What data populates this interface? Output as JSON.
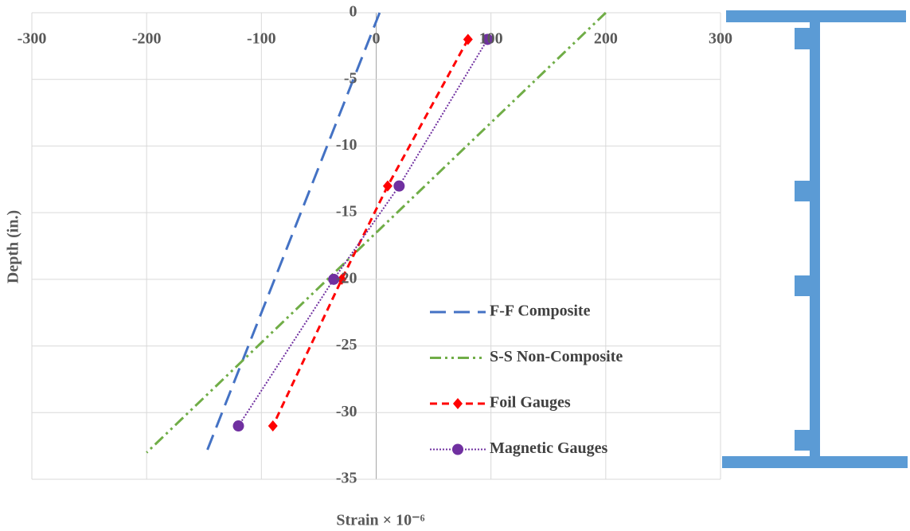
{
  "chart_data": {
    "type": "line",
    "x_label": "Strain × 10⁻⁶",
    "y_label": "Depth (in.)",
    "xlim": [
      -300,
      300
    ],
    "xticks": [
      -300,
      -200,
      -100,
      0,
      100,
      200,
      300
    ],
    "ylim": [
      -35,
      0
    ],
    "yticks": [
      0,
      -5,
      -10,
      -15,
      -20,
      -25,
      -30,
      -35
    ],
    "grid": true,
    "legend": "lower right",
    "series": [
      {
        "name": "F-F Composite",
        "color": "#4472c4",
        "dash": "dashed",
        "marker": "none",
        "x": [
          3,
          -148
        ],
        "values": [
          0,
          -33
        ]
      },
      {
        "name": "S-S Non-Composite",
        "color": "#70ad47",
        "dash": "dashdotdot",
        "marker": "none",
        "x": [
          200,
          -200
        ],
        "values": [
          0,
          -33
        ]
      },
      {
        "name": "Foil Gauges",
        "color": "#ff0000",
        "dash": "short-dash",
        "marker": "diamond",
        "x": [
          80,
          10,
          -30,
          -90
        ],
        "values": [
          -2,
          -13,
          -20,
          -31
        ]
      },
      {
        "name": "Magnetic Gauges",
        "color": "#7030a0",
        "dash": "dotted",
        "marker": "circle",
        "x": [
          97,
          20,
          -37,
          -120
        ],
        "values": [
          -2,
          -13,
          -20,
          -31
        ]
      }
    ]
  }
}
